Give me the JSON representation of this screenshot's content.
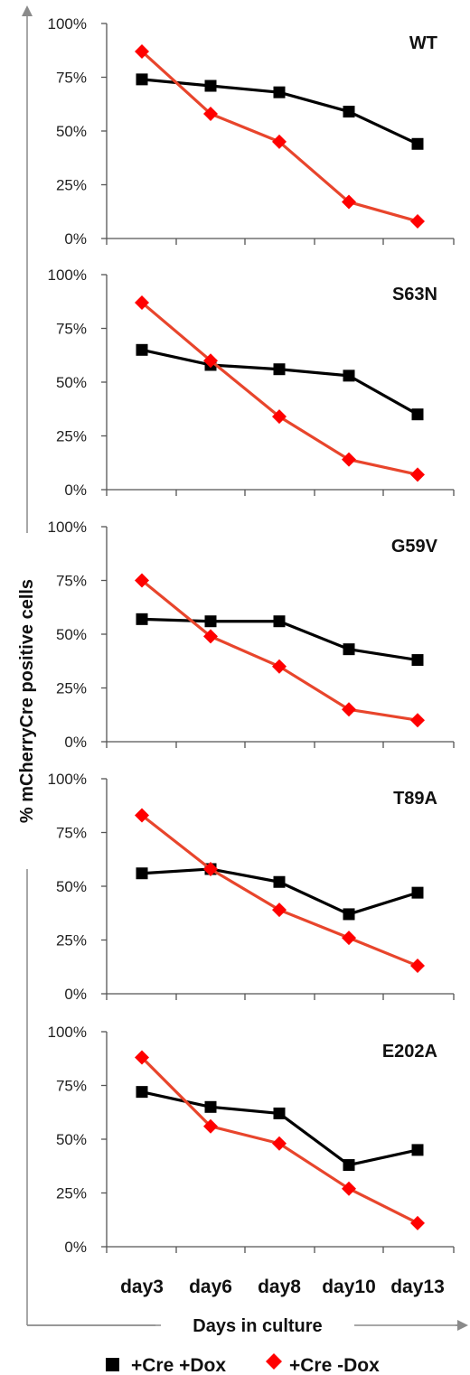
{
  "chart_data": {
    "type": "line",
    "categories": [
      "day3",
      "day6",
      "day8",
      "day10",
      "day13"
    ],
    "xlabel": "Days in culture",
    "ylabel": "% mCherryCre positive cells",
    "ylim": [
      0,
      100
    ],
    "yticks": [
      "0%",
      "25%",
      "50%",
      "75%",
      "100%"
    ],
    "grid": false,
    "legend_position": "bottom",
    "series_styles": [
      {
        "name": "+Cre +Dox",
        "color": "#000000",
        "marker": "square"
      },
      {
        "name": "+Cre -Dox",
        "color": "#e8452c",
        "marker_color": "#ff0000",
        "marker": "diamond"
      }
    ],
    "panels": [
      {
        "label": "WT",
        "series": [
          {
            "name": "+Cre +Dox",
            "values": [
              74,
              71,
              68,
              59,
              44
            ]
          },
          {
            "name": "+Cre -Dox",
            "values": [
              87,
              58,
              45,
              17,
              8
            ]
          }
        ]
      },
      {
        "label": "S63N",
        "series": [
          {
            "name": "+Cre +Dox",
            "values": [
              65,
              58,
              56,
              53,
              35
            ]
          },
          {
            "name": "+Cre -Dox",
            "values": [
              87,
              60,
              34,
              14,
              7
            ]
          }
        ]
      },
      {
        "label": "G59V",
        "series": [
          {
            "name": "+Cre +Dox",
            "values": [
              57,
              56,
              56,
              43,
              38
            ]
          },
          {
            "name": "+Cre -Dox",
            "values": [
              75,
              49,
              35,
              15,
              10
            ]
          }
        ]
      },
      {
        "label": "T89A",
        "series": [
          {
            "name": "+Cre +Dox",
            "values": [
              56,
              58,
              52,
              37,
              47
            ]
          },
          {
            "name": "+Cre -Dox",
            "values": [
              83,
              58,
              39,
              26,
              13
            ]
          }
        ]
      },
      {
        "label": "E202A",
        "series": [
          {
            "name": "+Cre +Dox",
            "values": [
              72,
              65,
              62,
              38,
              45
            ]
          },
          {
            "name": "+Cre -Dox",
            "values": [
              88,
              56,
              48,
              27,
              11
            ]
          }
        ]
      }
    ]
  }
}
